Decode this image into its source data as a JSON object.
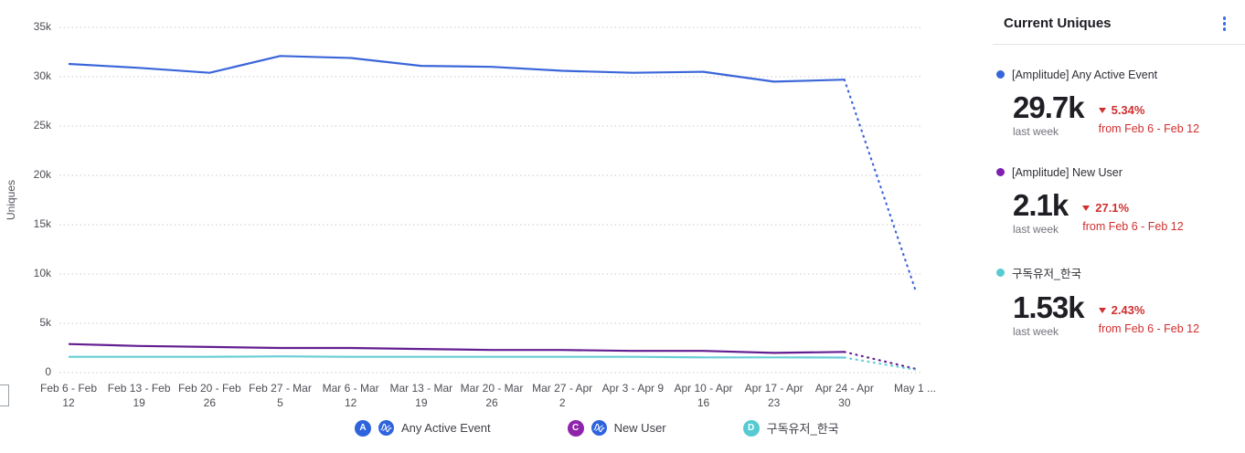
{
  "colors": {
    "series_blue": "#3b66d9",
    "series_purple": "#641e92",
    "series_teal": "#68ced6",
    "badge_blue": "#2d63dc",
    "badge_purple": "#8e24aa",
    "badge_teal": "#55cbd1",
    "negative_red": "#d02f2f",
    "menu_blue": "#3b6be0",
    "grid_gray": "#c9c9c9"
  },
  "chart_data": {
    "type": "line",
    "title": "",
    "xlabel": "",
    "ylabel": "Uniques",
    "ylim": [
      0,
      35000
    ],
    "grid": "dotted-horizontal",
    "legend_position": "bottom",
    "y_ticks": [
      {
        "value": 35000,
        "label": "35k"
      },
      {
        "value": 30000,
        "label": "30k"
      },
      {
        "value": 25000,
        "label": "25k"
      },
      {
        "value": 20000,
        "label": "20k"
      },
      {
        "value": 15000,
        "label": "15k"
      },
      {
        "value": 10000,
        "label": "10k"
      },
      {
        "value": 5000,
        "label": "5k"
      },
      {
        "value": 0,
        "label": "0"
      }
    ],
    "categories": [
      "Feb 6 - Feb 12",
      "Feb 13 - Feb 19",
      "Feb 20 - Feb 26",
      "Feb 27 - Mar 5",
      "Mar 6 - Mar 12",
      "Mar 13 - Mar 19",
      "Mar 20 - Mar 26",
      "Mar 27 - Apr 2",
      "Apr 3 - Apr 9",
      "Apr 10 - Apr 16",
      "Apr 17 - Apr 23",
      "Apr 24 - Apr 30",
      "May 1 ..."
    ],
    "x_label_lines": [
      [
        "Feb 6 - Feb",
        "12"
      ],
      [
        "Feb 13 - Feb",
        "19"
      ],
      [
        "Feb 20 - Feb",
        "26"
      ],
      [
        "Feb 27 - Mar",
        "5"
      ],
      [
        "Mar 6 - Mar",
        "12"
      ],
      [
        "Mar 13 - Mar",
        "19"
      ],
      [
        "Mar 20 - Mar",
        "26"
      ],
      [
        "Mar 27 - Apr",
        "2"
      ],
      [
        "Apr 3 - Apr 9"
      ],
      [
        "Apr 10 - Apr",
        "16"
      ],
      [
        "Apr 17 - Apr",
        "23"
      ],
      [
        "Apr 24 - Apr",
        "30"
      ],
      [
        "May 1 ..."
      ]
    ],
    "final_point_partial_week_dotted": true,
    "series": [
      {
        "key": "any-active-event",
        "name": "[Amplitude] Any Active Event",
        "color": "#3b66d9",
        "values": [
          31300,
          30900,
          30400,
          32100,
          31900,
          31100,
          31000,
          30600,
          30400,
          30500,
          29500,
          29700,
          8500
        ]
      },
      {
        "key": "new-user",
        "name": "[Amplitude] New User",
        "color": "#641e92",
        "values": [
          2900,
          2700,
          2600,
          2500,
          2500,
          2400,
          2300,
          2300,
          2200,
          2200,
          2000,
          2100,
          400
        ]
      },
      {
        "key": "subscriber-korea",
        "name": "구독유저_한국",
        "color": "#68ced6",
        "values": [
          1600,
          1600,
          1600,
          1650,
          1600,
          1600,
          1600,
          1600,
          1600,
          1550,
          1550,
          1530,
          300
        ]
      }
    ]
  },
  "legend": {
    "items": [
      {
        "key": "any-active-event",
        "badge_letter": "A",
        "badge_color": "#2d63dc",
        "has_amplitude_icon": true,
        "label": "Any Active Event"
      },
      {
        "key": "new-user",
        "badge_letter": "C",
        "badge_color": "#8e24aa",
        "has_amplitude_icon": true,
        "label": "New User"
      },
      {
        "key": "subscriber-korea",
        "badge_letter": "D",
        "badge_color": "#55cbd1",
        "has_amplitude_icon": false,
        "label": "구독유저_한국"
      }
    ]
  },
  "panel": {
    "title": "Current Uniques",
    "items": [
      {
        "label": "[Amplitude] Any Active Event",
        "dot_color": "#3565d9",
        "value": "29.7k",
        "period": "last week",
        "change": "5.34%",
        "direction": "down",
        "compare": "from Feb 6 - Feb 12"
      },
      {
        "label": "[Amplitude] New User",
        "dot_color": "#7f1fb0",
        "value": "2.1k",
        "period": "last week",
        "change": "27.1%",
        "direction": "down",
        "compare": "from Feb 6 - Feb 12"
      },
      {
        "label": "구독유저_한국",
        "dot_color": "#58cbd1",
        "value": "1.53k",
        "period": "last week",
        "change": "2.43%",
        "direction": "down",
        "compare": "from Feb 6 - Feb 12"
      }
    ]
  }
}
